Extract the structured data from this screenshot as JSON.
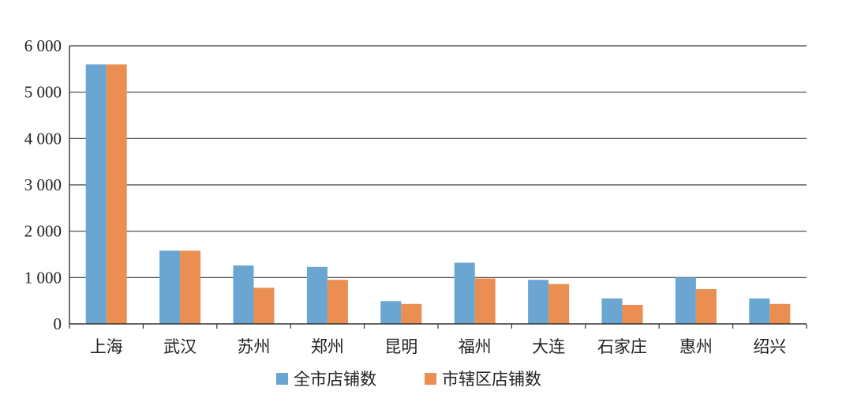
{
  "chart_data": {
    "type": "bar",
    "title": "",
    "xlabel": "",
    "ylabel": "",
    "categories": [
      "上海",
      "武汉",
      "苏州",
      "郑州",
      "昆明",
      "福州",
      "大连",
      "石家庄",
      "惠州",
      "绍兴"
    ],
    "series": [
      {
        "name": "全市店铺数",
        "color": "#6aa6d1",
        "values": [
          5600,
          1580,
          1260,
          1230,
          490,
          1320,
          950,
          550,
          1000,
          550
        ]
      },
      {
        "name": "市辖区店铺数",
        "color": "#ea8e52",
        "values": [
          5600,
          1580,
          780,
          950,
          430,
          980,
          860,
          410,
          750,
          430
        ]
      }
    ],
    "ylim": [
      0,
      6000
    ],
    "yticks": [
      0,
      1000,
      2000,
      3000,
      4000,
      5000,
      6000
    ],
    "ytick_labels": [
      "0",
      "1 000",
      "2 000",
      "3 000",
      "4 000",
      "5 000",
      "6 000"
    ],
    "grid": true,
    "legend": "bottom"
  }
}
